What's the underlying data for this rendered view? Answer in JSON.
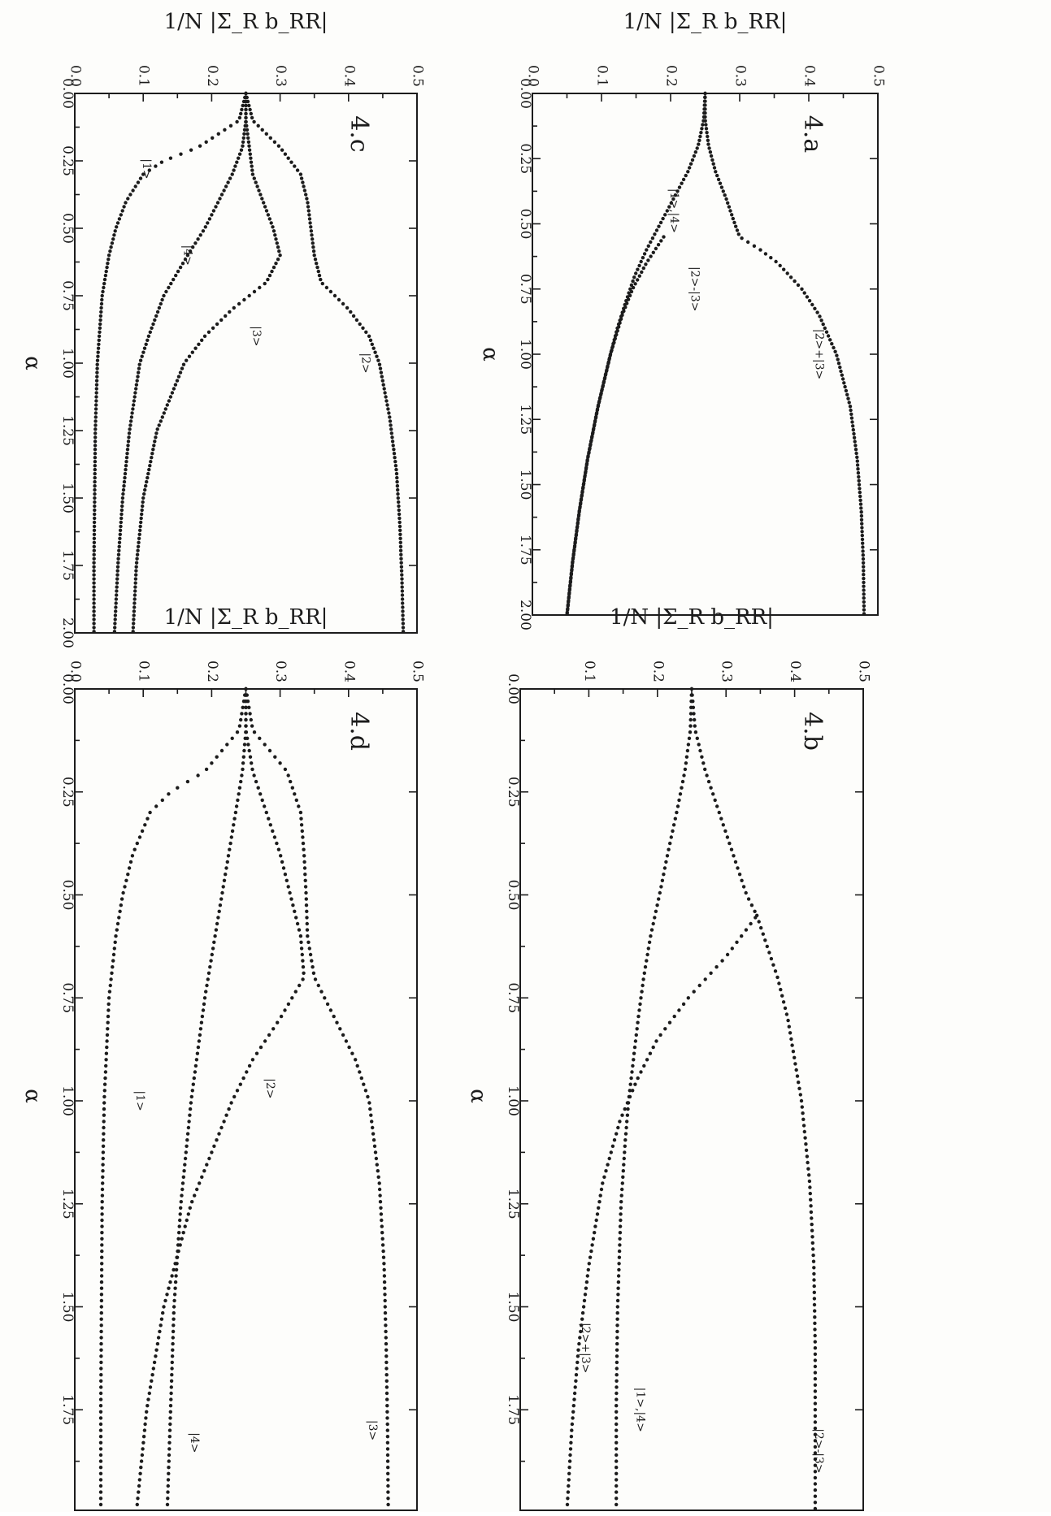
{
  "chart_data": [
    {
      "type": "scatter",
      "panel_label": "4.a",
      "xlabel": "α",
      "ylabel": "1/N |Σ_R b_RR|",
      "xlim": [
        0,
        2
      ],
      "ylim": [
        0,
        0.5
      ],
      "xticks": [
        "0.00",
        "0.25",
        "0.50",
        "0.75",
        "1.00",
        "1.25",
        "1.50",
        "1.75",
        "2.00"
      ],
      "yticks": [
        "0.0",
        "0.1",
        "0.2",
        "0.3",
        "0.4",
        "0.5"
      ],
      "series": [
        {
          "name": "|1>,|4>",
          "x": [
            0,
            0.1,
            0.2,
            0.3,
            0.4,
            0.5,
            0.6,
            0.7,
            0.8,
            0.9,
            1.0,
            1.2,
            1.4,
            1.6,
            1.8,
            2.0
          ],
          "y": [
            0.25,
            0.248,
            0.24,
            0.225,
            0.205,
            0.185,
            0.165,
            0.148,
            0.135,
            0.123,
            0.113,
            0.095,
            0.08,
            0.068,
            0.058,
            0.05
          ]
        },
        {
          "name": "|2>-|3>",
          "x": [
            0.55,
            0.65,
            0.75,
            0.85,
            1.0,
            1.2,
            1.4,
            1.6,
            1.8,
            2.0
          ],
          "y": [
            0.19,
            0.165,
            0.145,
            0.13,
            0.113,
            0.095,
            0.08,
            0.068,
            0.058,
            0.05
          ]
        },
        {
          "name": "|2>+|3>",
          "x": [
            0,
            0.1,
            0.2,
            0.3,
            0.4,
            0.5,
            0.55,
            0.6,
            0.65,
            0.75,
            0.85,
            1.0,
            1.2,
            1.4,
            1.6,
            1.8,
            2.0
          ],
          "y": [
            0.25,
            0.25,
            0.255,
            0.265,
            0.28,
            0.293,
            0.3,
            0.33,
            0.355,
            0.39,
            0.415,
            0.44,
            0.46,
            0.47,
            0.476,
            0.479,
            0.48
          ]
        }
      ],
      "annotations": [
        {
          "text": "|1>,|4>",
          "x": 0.45,
          "y": 0.2
        },
        {
          "text": "|2>-|3>",
          "x": 0.75,
          "y": 0.23
        },
        {
          "text": "|2>+|3>",
          "x": 1.0,
          "y": 0.41
        }
      ]
    },
    {
      "type": "scatter",
      "panel_label": "4.b",
      "xlabel": "α",
      "ylabel": "1/N |Σ_R b_RR|",
      "xlim": [
        0,
        2
      ],
      "ylim": [
        0,
        0.5
      ],
      "xticks": [
        "0.00",
        "0.25",
        "0.50",
        "0.75",
        "1.00",
        "1.25",
        "1.50",
        "1.75",
        "2.00"
      ],
      "yticks": [
        "0.1",
        "0.2",
        "0.3",
        "0.4",
        "0.5"
      ],
      "series": [
        {
          "name": "|1>,|4>",
          "x": [
            0,
            0.1,
            0.2,
            0.3,
            0.4,
            0.5,
            0.6,
            0.7,
            0.8,
            0.9,
            1.0,
            1.1,
            1.25,
            1.5,
            1.75,
            2.0
          ],
          "y": [
            0.25,
            0.248,
            0.24,
            0.228,
            0.215,
            0.203,
            0.19,
            0.18,
            0.172,
            0.165,
            0.158,
            0.153,
            0.147,
            0.142,
            0.14,
            0.14
          ]
        },
        {
          "name": "|2>+|3>",
          "x": [
            0,
            0.1,
            0.2,
            0.3,
            0.4,
            0.5,
            0.55,
            0.65,
            0.75,
            0.85,
            0.95,
            1.05,
            1.2,
            1.4,
            1.6,
            1.8,
            2.0
          ],
          "y": [
            0.25,
            0.255,
            0.27,
            0.29,
            0.31,
            0.33,
            0.345,
            0.3,
            0.245,
            0.2,
            0.17,
            0.145,
            0.12,
            0.1,
            0.085,
            0.075,
            0.068
          ]
        },
        {
          "name": "|2>-|3>",
          "x": [
            0.55,
            0.6,
            0.7,
            0.8,
            0.9,
            1.0,
            1.2,
            1.4,
            1.6,
            1.8,
            2.0
          ],
          "y": [
            0.345,
            0.355,
            0.375,
            0.39,
            0.4,
            0.41,
            0.422,
            0.428,
            0.43,
            0.43,
            0.43
          ]
        }
      ],
      "annotations": [
        {
          "text": "|2>+|3>",
          "x": 1.6,
          "y": 0.09
        },
        {
          "text": "|1>,|4>",
          "x": 1.75,
          "y": 0.17
        },
        {
          "text": "|2>-|3>",
          "x": 1.85,
          "y": 0.43
        }
      ]
    },
    {
      "type": "scatter",
      "panel_label": "4.c",
      "xlabel": "α",
      "ylabel": "1/N |Σ_R b_RR|",
      "xlim": [
        0,
        2
      ],
      "ylim": [
        0,
        0.5
      ],
      "xticks": [
        "0.00",
        "0.25",
        "0.50",
        "0.75",
        "1.00",
        "1.25",
        "1.50",
        "1.75",
        "2.00"
      ],
      "yticks": [
        "0.0",
        "0.1",
        "0.2",
        "0.3",
        "0.4",
        "0.5"
      ],
      "series": [
        {
          "name": "|1>",
          "x": [
            0,
            0.1,
            0.2,
            0.25,
            0.3,
            0.4,
            0.5,
            0.6,
            0.75,
            1.0,
            1.25,
            1.5,
            1.75,
            2.0
          ],
          "y": [
            0.25,
            0.24,
            0.18,
            0.13,
            0.1,
            0.075,
            0.06,
            0.05,
            0.04,
            0.033,
            0.03,
            0.029,
            0.028,
            0.028
          ]
        },
        {
          "name": "|4>",
          "x": [
            0,
            0.1,
            0.2,
            0.3,
            0.4,
            0.5,
            0.6,
            0.75,
            0.9,
            1.0,
            1.25,
            1.5,
            1.75,
            2.0
          ],
          "y": [
            0.25,
            0.25,
            0.245,
            0.23,
            0.21,
            0.19,
            0.165,
            0.13,
            0.108,
            0.095,
            0.08,
            0.07,
            0.063,
            0.058
          ]
        },
        {
          "name": "|3>",
          "x": [
            0,
            0.1,
            0.2,
            0.3,
            0.4,
            0.5,
            0.6,
            0.7,
            0.8,
            0.9,
            1.0,
            1.25,
            1.5,
            1.75,
            2.0
          ],
          "y": [
            0.25,
            0.25,
            0.255,
            0.26,
            0.275,
            0.29,
            0.3,
            0.28,
            0.23,
            0.19,
            0.16,
            0.12,
            0.1,
            0.09,
            0.085
          ]
        },
        {
          "name": "|2>",
          "x": [
            0,
            0.1,
            0.2,
            0.3,
            0.4,
            0.5,
            0.6,
            0.7,
            0.8,
            0.9,
            1.0,
            1.2,
            1.4,
            1.6,
            1.8,
            2.0
          ],
          "y": [
            0.25,
            0.26,
            0.3,
            0.33,
            0.34,
            0.345,
            0.35,
            0.36,
            0.4,
            0.43,
            0.445,
            0.46,
            0.47,
            0.475,
            0.478,
            0.48
          ]
        }
      ],
      "annotations": [
        {
          "text": "|1>",
          "x": 0.28,
          "y": 0.1
        },
        {
          "text": "|4>",
          "x": 0.6,
          "y": 0.16
        },
        {
          "text": "|3>",
          "x": 0.9,
          "y": 0.26
        },
        {
          "text": "|2>",
          "x": 1.0,
          "y": 0.42
        }
      ]
    },
    {
      "type": "scatter",
      "panel_label": "4.d",
      "xlabel": "α",
      "ylabel": "1/N |Σ_R b_RR|",
      "xlim": [
        0,
        2
      ],
      "ylim": [
        0,
        0.5
      ],
      "xticks": [
        "0.00",
        "0.25",
        "0.50",
        "0.75",
        "1.00",
        "1.25",
        "1.50",
        "1.75",
        "2.00"
      ],
      "yticks": [
        "0.0",
        "0.1",
        "0.2",
        "0.3",
        "0.4",
        "0.5"
      ],
      "series": [
        {
          "name": "|1>",
          "x": [
            0,
            0.1,
            0.2,
            0.25,
            0.3,
            0.4,
            0.5,
            0.6,
            0.75,
            1.0,
            1.25,
            1.5,
            1.75,
            2.0
          ],
          "y": [
            0.25,
            0.24,
            0.19,
            0.14,
            0.11,
            0.085,
            0.07,
            0.06,
            0.05,
            0.043,
            0.04,
            0.039,
            0.038,
            0.038
          ]
        },
        {
          "name": "|4>",
          "x": [
            0,
            0.1,
            0.2,
            0.3,
            0.4,
            0.5,
            0.6,
            0.75,
            1.0,
            1.25,
            1.5,
            1.75,
            2.0
          ],
          "y": [
            0.25,
            0.25,
            0.245,
            0.235,
            0.225,
            0.215,
            0.205,
            0.19,
            0.17,
            0.155,
            0.145,
            0.14,
            0.135
          ]
        },
        {
          "name": "|2>",
          "x": [
            0,
            0.1,
            0.2,
            0.3,
            0.4,
            0.5,
            0.6,
            0.7,
            0.8,
            0.9,
            1.0,
            1.25,
            1.5,
            1.75,
            2.0
          ],
          "y": [
            0.25,
            0.25,
            0.26,
            0.28,
            0.3,
            0.315,
            0.33,
            0.335,
            0.3,
            0.26,
            0.23,
            0.17,
            0.13,
            0.105,
            0.09
          ]
        },
        {
          "name": "|3>",
          "x": [
            0,
            0.1,
            0.2,
            0.3,
            0.4,
            0.5,
            0.6,
            0.7,
            0.8,
            0.9,
            1.0,
            1.2,
            1.4,
            1.6,
            1.8,
            2.0
          ],
          "y": [
            0.25,
            0.26,
            0.31,
            0.33,
            0.335,
            0.338,
            0.34,
            0.35,
            0.38,
            0.41,
            0.43,
            0.445,
            0.452,
            0.455,
            0.457,
            0.458
          ]
        }
      ],
      "annotations": [
        {
          "text": "|1>",
          "x": 1.0,
          "y": 0.09
        },
        {
          "text": "|2>",
          "x": 0.97,
          "y": 0.28
        },
        {
          "text": "|4>",
          "x": 1.83,
          "y": 0.17
        },
        {
          "text": "|3>",
          "x": 1.8,
          "y": 0.43
        }
      ]
    }
  ]
}
